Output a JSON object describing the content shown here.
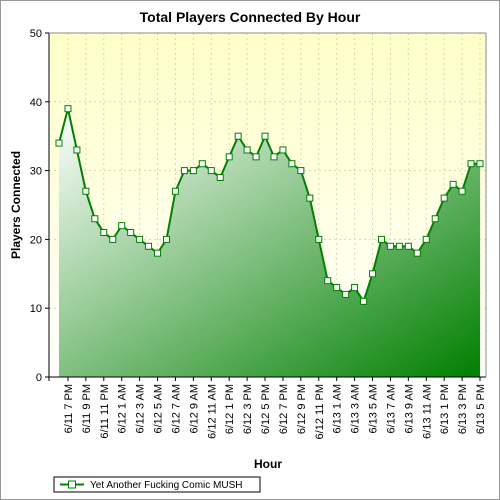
{
  "chart_data": {
    "type": "area",
    "title": "Total Players Connected By Hour",
    "xlabel": "Hour",
    "ylabel": "Players Connected",
    "ylim": [
      0,
      50
    ],
    "yticks": [
      0,
      10,
      20,
      30,
      40,
      50
    ],
    "grid": true,
    "legend_position": "bottom-left",
    "x": [
      "6/11 6 PM",
      "6/11 7 PM",
      "6/11 8 PM",
      "6/11 9 PM",
      "6/11 10 PM",
      "6/11 11 PM",
      "6/12 12 AM",
      "6/12 1 AM",
      "6/12 2 AM",
      "6/12 3 AM",
      "6/12 4 AM",
      "6/12 5 AM",
      "6/12 6 AM",
      "6/12 7 AM",
      "6/12 8 AM",
      "6/12 9 AM",
      "6/12 10 AM",
      "6/12 11 AM",
      "6/12 12 PM",
      "6/12 1 PM",
      "6/12 2 PM",
      "6/12 3 PM",
      "6/12 4 PM",
      "6/12 5 PM",
      "6/12 6 PM",
      "6/12 7 PM",
      "6/12 8 PM",
      "6/12 9 PM",
      "6/12 10 PM",
      "6/12 11 PM",
      "6/13 12 AM",
      "6/13 1 AM",
      "6/13 2 AM",
      "6/13 3 AM",
      "6/13 4 AM",
      "6/13 5 AM",
      "6/13 6 AM",
      "6/13 7 AM",
      "6/13 8 AM",
      "6/13 9 AM",
      "6/13 10 AM",
      "6/13 11 AM",
      "6/13 12 PM",
      "6/13 1 PM",
      "6/13 2 PM",
      "6/13 3 PM",
      "6/13 4 PM",
      "6/13 5 PM"
    ],
    "tick_labels": [
      "6/11 7 PM",
      "6/11 9 PM",
      "6/11 11 PM",
      "6/12 1 AM",
      "6/12 3 AM",
      "6/12 5 AM",
      "6/12 7 AM",
      "6/12 9 AM",
      "6/12 11 AM",
      "6/12 1 PM",
      "6/12 3 PM",
      "6/12 5 PM",
      "6/12 7 PM",
      "6/12 9 PM",
      "6/12 11 PM",
      "6/13 1 AM",
      "6/13 3 AM",
      "6/13 5 AM",
      "6/13 7 AM",
      "6/13 9 AM",
      "6/13 11 AM",
      "6/13 1 PM",
      "6/13 3 PM",
      "6/13 5 PM"
    ],
    "series": [
      {
        "name": "Yet Another Fucking Comic MUSH",
        "values": [
          34,
          39,
          33,
          27,
          23,
          21,
          20,
          22,
          21,
          20,
          19,
          18,
          20,
          27,
          30,
          30,
          31,
          30,
          29,
          32,
          35,
          33,
          32,
          35,
          32,
          33,
          31,
          30,
          26,
          20,
          14,
          13,
          12,
          13,
          11,
          15,
          20,
          19,
          19,
          19,
          18,
          20,
          23,
          26,
          28,
          27,
          31,
          31
        ]
      }
    ],
    "colors": {
      "area_light": "#ffffff",
      "area_dark": "#008000",
      "line": "#008000",
      "plot_bg_top": "#ffffc8",
      "plot_bg_bottom": "#ffffff",
      "grid": "#d8d8b0"
    }
  }
}
